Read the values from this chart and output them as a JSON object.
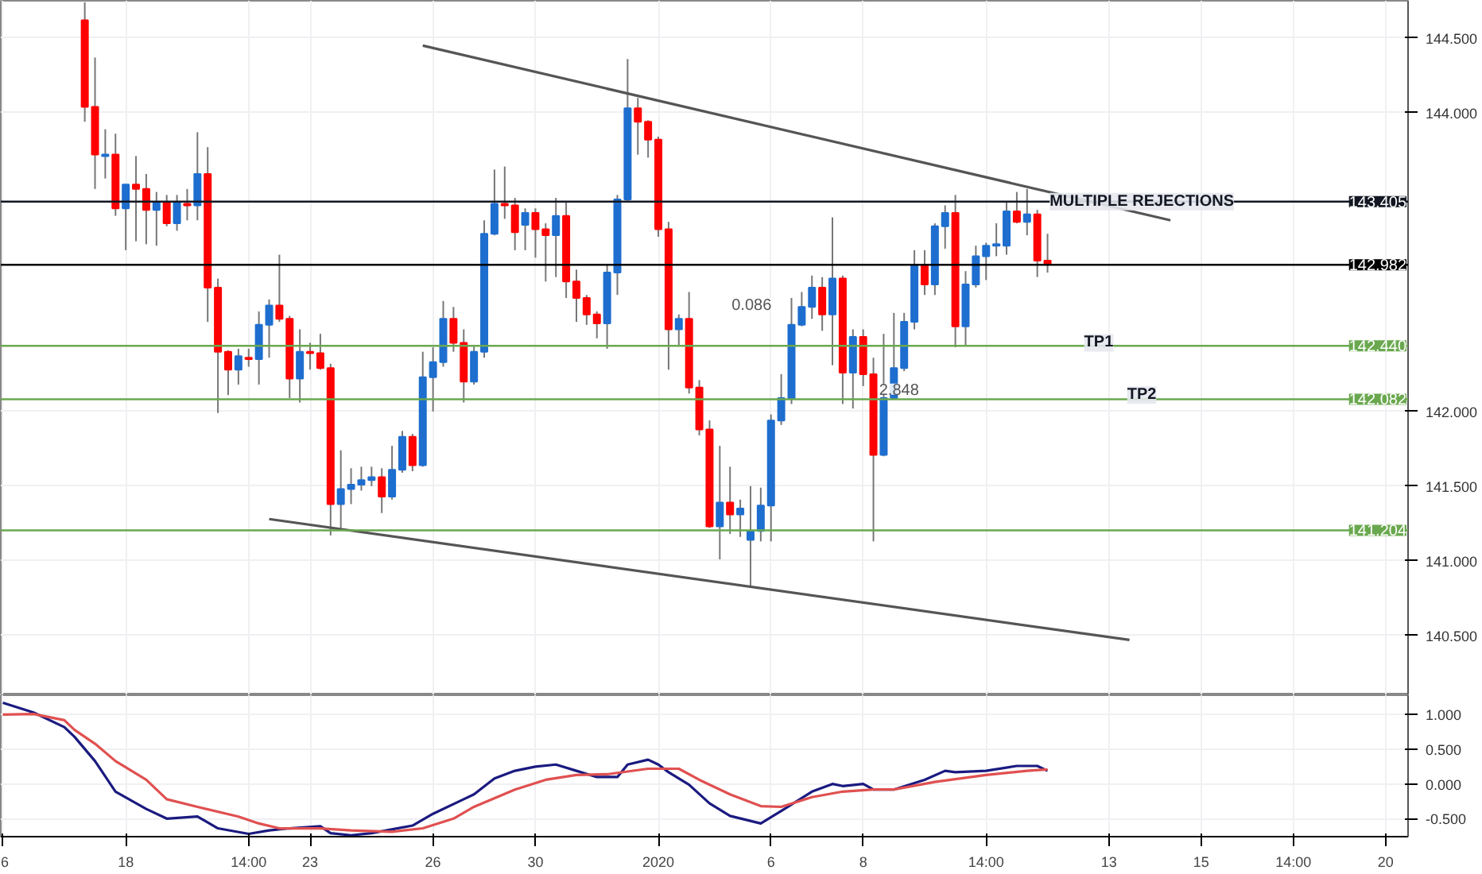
{
  "chart_data": [
    {
      "type": "candlestick",
      "categories": [
        "6",
        null,
        null,
        null,
        null,
        null,
        null,
        null,
        null,
        null,
        null,
        null,
        "18",
        null,
        null,
        null,
        null,
        null,
        null,
        null,
        null,
        null,
        null,
        null,
        "14:00",
        null,
        null,
        null,
        null,
        null,
        "23",
        null,
        null,
        null,
        null,
        null,
        null,
        null,
        null,
        null,
        null,
        null,
        "26",
        null,
        null,
        null,
        null,
        null,
        null,
        null,
        null,
        null,
        "30",
        null,
        null,
        null,
        null,
        null,
        null,
        null,
        null,
        null,
        null,
        null,
        "2020",
        null,
        null,
        null,
        null,
        null,
        null,
        null,
        null,
        null,
        null,
        "6",
        null,
        null,
        null,
        null,
        null,
        null,
        null,
        null,
        "8",
        null,
        null,
        null,
        null,
        null,
        null,
        null,
        null,
        null,
        null,
        null,
        "14:00",
        null,
        null,
        null,
        null,
        null,
        null,
        null,
        null,
        null,
        null,
        null,
        "13",
        null,
        null,
        null,
        null,
        null,
        null,
        null,
        null,
        "15",
        null,
        null,
        null,
        null,
        null,
        null,
        null,
        null,
        "14:00",
        null,
        null,
        null,
        null,
        null,
        null,
        null,
        null,
        "20",
        null,
        null
      ],
      "ohlc": [
        null,
        null,
        null,
        null,
        null,
        null,
        null,
        null,
        [
          144.62,
          144.74,
          143.94,
          144.04
        ],
        [
          144.04,
          144.37,
          143.49,
          143.72
        ],
        [
          143.71,
          143.89,
          143.56,
          143.72
        ],
        [
          143.72,
          143.86,
          143.31,
          143.36
        ],
        [
          143.36,
          143.52,
          143.08,
          143.52
        ],
        [
          143.52,
          143.71,
          143.14,
          143.49
        ],
        [
          143.49,
          143.59,
          143.12,
          143.35
        ],
        [
          143.35,
          143.47,
          143.11,
          143.4
        ],
        [
          143.4,
          143.45,
          143.24,
          143.26
        ],
        [
          143.26,
          143.45,
          143.21,
          143.4
        ],
        [
          143.39,
          143.49,
          143.28,
          143.38
        ],
        [
          143.38,
          143.87,
          143.28,
          143.59
        ],
        [
          143.59,
          143.77,
          142.6,
          142.83
        ],
        [
          142.83,
          142.89,
          141.99,
          142.4
        ],
        [
          142.4,
          142.41,
          142.11,
          142.28
        ],
        [
          142.28,
          142.42,
          142.18,
          142.37
        ],
        [
          142.36,
          142.42,
          142.3,
          142.35
        ],
        [
          142.35,
          142.67,
          142.18,
          142.58
        ],
        [
          142.58,
          142.75,
          142.36,
          142.71
        ],
        [
          142.71,
          143.05,
          142.6,
          142.62
        ],
        [
          142.62,
          142.64,
          142.09,
          142.22
        ],
        [
          142.22,
          142.55,
          142.06,
          142.4
        ],
        [
          142.4,
          142.46,
          142.28,
          142.39
        ],
        [
          142.39,
          142.52,
          142.28,
          142.29
        ],
        [
          142.29,
          142.32,
          141.17,
          141.38
        ],
        [
          141.38,
          141.74,
          141.22,
          141.48
        ],
        [
          141.48,
          141.62,
          141.38,
          141.51
        ],
        [
          141.51,
          141.63,
          141.47,
          141.54
        ],
        [
          141.54,
          141.63,
          141.5,
          141.56
        ],
        [
          141.56,
          141.62,
          141.32,
          141.43
        ],
        [
          141.43,
          141.77,
          141.41,
          141.61
        ],
        [
          141.61,
          141.87,
          141.59,
          141.83
        ],
        [
          141.83,
          141.85,
          141.6,
          141.64
        ],
        [
          141.64,
          142.4,
          141.63,
          142.23
        ],
        [
          142.23,
          142.43,
          142.0,
          142.33
        ],
        [
          142.33,
          142.74,
          142.3,
          142.62
        ],
        [
          142.62,
          142.7,
          142.4,
          142.46
        ],
        [
          142.46,
          142.55,
          142.06,
          142.2
        ],
        [
          142.2,
          142.44,
          142.18,
          142.4
        ],
        [
          142.4,
          143.28,
          142.36,
          143.19
        ],
        [
          143.19,
          143.62,
          143.18,
          143.39
        ],
        [
          143.39,
          143.64,
          143.29,
          143.38
        ],
        [
          143.38,
          143.43,
          143.08,
          143.2
        ],
        [
          143.25,
          143.36,
          143.08,
          143.33
        ],
        [
          143.33,
          143.36,
          143.03,
          143.22
        ],
        [
          143.22,
          143.26,
          142.87,
          143.18
        ],
        [
          143.18,
          143.43,
          142.9,
          143.31
        ],
        [
          143.31,
          143.4,
          142.76,
          142.87
        ],
        [
          142.87,
          142.95,
          142.6,
          142.76
        ],
        [
          142.76,
          142.78,
          142.58,
          142.65
        ],
        [
          142.65,
          142.67,
          142.49,
          142.59
        ],
        [
          142.59,
          142.98,
          142.42,
          142.93
        ],
        [
          142.93,
          143.45,
          142.78,
          143.42
        ],
        [
          143.42,
          144.36,
          143.41,
          144.03
        ],
        [
          144.03,
          144.1,
          143.72,
          143.94
        ],
        [
          143.94,
          143.95,
          143.7,
          143.82
        ],
        [
          143.82,
          143.84,
          143.17,
          143.22
        ],
        [
          143.22,
          143.27,
          142.28,
          142.55
        ],
        [
          142.55,
          142.65,
          142.44,
          142.62
        ],
        [
          142.62,
          142.8,
          142.12,
          142.16
        ],
        [
          142.16,
          142.21,
          141.84,
          141.88
        ],
        [
          141.88,
          141.94,
          141.22,
          141.23
        ],
        [
          141.23,
          141.77,
          141.01,
          141.39
        ],
        [
          141.39,
          141.63,
          141.18,
          141.31
        ],
        [
          141.31,
          141.41,
          141.16,
          141.35
        ],
        [
          141.14,
          141.5,
          140.83,
          141.2
        ],
        [
          141.2,
          141.49,
          141.13,
          141.37
        ],
        [
          141.37,
          141.98,
          141.13,
          141.94
        ],
        [
          141.94,
          142.25,
          141.91,
          142.09
        ],
        [
          142.09,
          142.76,
          142.05,
          142.58
        ],
        [
          142.58,
          142.8,
          142.57,
          142.7
        ],
        [
          142.7,
          142.91,
          142.62,
          142.83
        ],
        [
          142.83,
          142.9,
          142.54,
          142.65
        ],
        [
          142.65,
          143.3,
          142.31,
          142.89
        ],
        [
          142.89,
          142.91,
          142.05,
          142.26
        ],
        [
          142.26,
          142.55,
          142.02,
          142.5
        ],
        [
          142.5,
          142.55,
          142.17,
          142.25
        ],
        [
          142.25,
          142.36,
          141.13,
          141.71
        ],
        [
          141.71,
          142.52,
          141.7,
          142.09
        ],
        [
          142.09,
          142.66,
          142.08,
          142.29
        ],
        [
          142.29,
          142.66,
          142.27,
          142.6
        ],
        [
          142.6,
          143.08,
          142.55,
          142.98
        ],
        [
          142.98,
          143.08,
          142.78,
          142.85
        ],
        [
          142.85,
          143.26,
          142.78,
          143.24
        ],
        [
          143.24,
          143.38,
          143.09,
          143.33
        ],
        [
          143.33,
          143.45,
          142.43,
          142.57
        ],
        [
          142.57,
          142.94,
          142.44,
          142.85
        ],
        [
          142.85,
          143.11,
          142.83,
          143.04
        ],
        [
          143.04,
          143.13,
          142.88,
          143.11
        ],
        [
          143.11,
          143.26,
          143.04,
          143.12
        ],
        [
          143.11,
          143.4,
          143.05,
          143.34
        ],
        [
          143.34,
          143.47,
          143.26,
          143.27
        ],
        [
          143.27,
          143.49,
          143.18,
          143.32
        ],
        [
          143.32,
          143.35,
          142.9,
          143.01
        ],
        [
          143.01,
          143.19,
          142.93,
          142.99
        ],
        null,
        null,
        null,
        null,
        null,
        null,
        null,
        null,
        null,
        null,
        null,
        null,
        null,
        null,
        null,
        null,
        null,
        null,
        null,
        null,
        null,
        null,
        null,
        null,
        null,
        null,
        null,
        null,
        null,
        null,
        null,
        null,
        null,
        null,
        null
      ],
      "colors": [
        null,
        null,
        null,
        null,
        null,
        null,
        null,
        null,
        "#ff0000",
        "#ff0000",
        "#1e6ecf",
        "#ff0000",
        "#1e6ecf",
        "#ff0000",
        "#ff0000",
        "#1e6ecf",
        "#ff0000",
        "#1e6ecf",
        "#ff0000",
        "#1e6ecf",
        "#ff0000",
        "#ff0000",
        "#ff0000",
        "#1e6ecf",
        "#ff0000",
        "#1e6ecf",
        "#1e6ecf",
        "#ff0000",
        "#ff0000",
        "#1e6ecf",
        "#ff0000",
        "#ff0000",
        "#ff0000",
        "#1e6ecf",
        "#1e6ecf",
        "#1e6ecf",
        "#1e6ecf",
        "#ff0000",
        "#1e6ecf",
        "#1e6ecf",
        "#ff0000",
        "#1e6ecf",
        "#1e6ecf",
        "#1e6ecf",
        "#ff0000",
        "#ff0000",
        "#1e6ecf",
        "#1e6ecf",
        "#1e6ecf",
        "#ff0000",
        "#ff0000",
        "#1e6ecf",
        "#ff0000",
        "#ff0000",
        "#1e6ecf",
        "#ff0000",
        "#ff0000",
        "#ff0000",
        "#ff0000",
        "#1e6ecf",
        "#1e6ecf",
        "#1e6ecf",
        "#ff0000",
        "#ff0000",
        "#ff0000",
        "#ff0000",
        "#1e6ecf",
        "#ff0000",
        "#ff0000",
        "#ff0000",
        "#1e6ecf",
        "#ff0000",
        "#1e6ecf",
        "#1e6ecf",
        "#1e6ecf",
        "#1e6ecf",
        "#1e6ecf",
        "#1e6ecf",
        "#1e6ecf",
        "#1e6ecf",
        "#ff0000",
        "#1e6ecf",
        "#ff0000",
        "#1e6ecf",
        "#ff0000",
        "#ff0000",
        "#1e6ecf",
        "#1e6ecf",
        "#1e6ecf",
        "#1e6ecf",
        "#ff0000",
        "#1e6ecf",
        "#1e6ecf",
        "#ff0000",
        "#1e6ecf",
        "#1e6ecf",
        "#1e6ecf",
        "#1e6ecf",
        "#1e6ecf",
        "#ff0000",
        "#1e6ecf",
        "#ff0000",
        "#ff0000",
        null,
        null,
        null,
        null,
        null,
        null,
        null,
        null,
        null,
        null,
        null,
        null,
        null,
        null,
        null,
        null,
        null,
        null,
        null,
        null,
        null,
        null,
        null,
        null,
        null,
        null,
        null,
        null,
        null,
        null,
        null,
        null,
        null,
        null,
        null
      ],
      "series": [
        {
          "type": "line",
          "color": "#555555",
          "values": [
            null,
            null,
            null,
            null,
            null,
            null,
            null,
            null,
            null,
            null,
            null,
            null,
            null,
            null,
            null,
            null,
            null,
            null,
            null,
            null,
            null,
            null,
            null,
            null,
            null,
            null,
            null,
            null,
            null,
            null,
            null,
            null,
            null,
            null,
            null,
            null,
            null,
            null,
            null,
            null,
            null,
            144.45,
            null,
            null,
            null,
            null,
            null,
            null,
            null,
            null,
            null,
            null,
            null,
            null,
            null,
            null,
            null,
            null,
            null,
            null,
            null,
            null,
            null,
            null,
            null,
            null,
            null,
            null,
            null,
            null,
            null,
            null,
            null,
            null,
            null,
            null,
            null,
            null,
            null,
            null,
            null,
            null,
            null,
            null,
            null,
            null,
            null,
            null,
            null,
            null,
            null,
            null,
            null,
            null,
            null,
            null,
            null,
            null,
            null,
            null,
            null,
            null,
            null,
            null,
            null,
            null,
            null,
            null,
            null,
            null,
            null,
            null,
            null,
            null,
            143.28,
            null,
            null,
            null,
            null,
            null,
            null,
            null,
            null,
            null,
            null,
            null,
            null,
            null,
            null,
            null,
            null,
            null,
            null,
            null,
            null,
            null,
            null,
            null
          ]
        },
        {
          "type": "line",
          "color": "#555555",
          "values": [
            null,
            null,
            null,
            null,
            null,
            null,
            null,
            null,
            null,
            null,
            null,
            null,
            null,
            null,
            null,
            null,
            null,
            null,
            null,
            null,
            null,
            null,
            null,
            null,
            null,
            null,
            141.28,
            null,
            null,
            null,
            null,
            null,
            null,
            null,
            null,
            null,
            null,
            null,
            null,
            null,
            null,
            null,
            null,
            null,
            null,
            null,
            null,
            null,
            null,
            null,
            null,
            null,
            null,
            null,
            null,
            null,
            null,
            null,
            null,
            null,
            null,
            null,
            null,
            null,
            null,
            null,
            null,
            null,
            null,
            null,
            null,
            null,
            null,
            null,
            null,
            null,
            null,
            null,
            null,
            null,
            null,
            null,
            null,
            null,
            null,
            null,
            null,
            null,
            null,
            null,
            null,
            null,
            null,
            null,
            null,
            null,
            null,
            null,
            null,
            null,
            null,
            null,
            null,
            null,
            null,
            null,
            null,
            null,
            null,
            null,
            140.47,
            null,
            null,
            null,
            null,
            null,
            null,
            null,
            null,
            null,
            null,
            null,
            null,
            null,
            null,
            null,
            null,
            null,
            null,
            null,
            null,
            null,
            null,
            null,
            null,
            null,
            null,
            null
          ]
        }
      ],
      "ylim": [
        140.1,
        144.75
      ],
      "yticks": [
        {
          "value": 140.5,
          "label": "140.500"
        },
        {
          "value": 141,
          "label": "141.000"
        },
        {
          "value": 141.5,
          "label": "141.500"
        },
        {
          "value": 142,
          "label": "142.000"
        },
        {
          "value": 144,
          "label": "144.000"
        },
        {
          "value": 144.5,
          "label": "144.500"
        }
      ],
      "tick_labels": "y",
      "grid": true,
      "ref_lines": [
        {
          "axis": "y",
          "value": 143.405,
          "label": "143.405",
          "color": "#131722"
        },
        {
          "axis": "y",
          "value": 142.982,
          "label": "142.982",
          "color": "#000000"
        },
        {
          "axis": "y",
          "value": 142.44,
          "label": "142.440",
          "color": "#6aa84f"
        },
        {
          "axis": "y",
          "value": 142.082,
          "label": "142.082",
          "color": "#6aa84f"
        },
        {
          "axis": "y",
          "value": 141.204,
          "label": "141.204",
          "color": "#6aa84f"
        }
      ],
      "annotations": [
        {
          "text": "MULTIPLE REJECTIONS",
          "y": 143.405
        },
        {
          "text": "TP1",
          "y": 142.46
        },
        {
          "text": "TP2",
          "y": 142.11
        },
        "0.086",
        "2.848"
      ]
    },
    {
      "type": "line",
      "categories": [
        "6",
        null,
        null,
        null,
        null,
        null,
        null,
        null,
        null,
        null,
        null,
        null,
        "18",
        null,
        null,
        null,
        null,
        null,
        null,
        null,
        null,
        null,
        null,
        null,
        "14:00",
        null,
        null,
        null,
        null,
        null,
        "23",
        null,
        null,
        null,
        null,
        null,
        null,
        null,
        null,
        null,
        null,
        null,
        "26",
        null,
        null,
        null,
        null,
        null,
        null,
        null,
        null,
        null,
        "30",
        null,
        null,
        null,
        null,
        null,
        null,
        null,
        null,
        null,
        null,
        null,
        "2020",
        null,
        null,
        null,
        null,
        null,
        null,
        null,
        null,
        null,
        null,
        "6",
        null,
        null,
        null,
        null,
        null,
        null,
        null,
        null,
        "8",
        null,
        null,
        null,
        null,
        null,
        null,
        null,
        null,
        null,
        null,
        null,
        "14:00",
        null,
        null,
        null,
        null,
        null,
        null,
        null,
        null,
        null,
        null,
        null,
        "13",
        null,
        null,
        null,
        null,
        null,
        null,
        null,
        null,
        "15",
        null,
        null,
        null,
        null,
        null,
        null,
        null,
        null,
        "14:00",
        null,
        null,
        null,
        null,
        null,
        null,
        null,
        null,
        "20",
        null,
        null
      ],
      "ylim": [
        -0.76,
        1.28
      ],
      "yticks": [
        {
          "value": 1,
          "label": "1.000"
        },
        {
          "value": 0.5,
          "label": "0.500"
        },
        {
          "value": 0,
          "label": "0.000"
        },
        {
          "value": -0.5,
          "label": "-0.500"
        }
      ],
      "grid": true,
      "series": [
        {
          "color": "#1a1a80",
          "values": [
            1.17,
            null,
            null,
            1.03,
            null,
            null,
            0.82,
            0.68,
            null,
            0.33,
            null,
            -0.11,
            null,
            null,
            -0.36,
            null,
            -0.5,
            null,
            null,
            -0.47,
            null,
            -0.64,
            null,
            null,
            -0.72,
            null,
            -0.67,
            null,
            -0.64,
            null,
            null,
            -0.61,
            -0.71,
            null,
            -0.74,
            null,
            -0.71,
            null,
            null,
            null,
            -0.6,
            null,
            -0.43,
            null,
            null,
            -0.22,
            -0.15,
            null,
            0.08,
            null,
            0.19,
            null,
            0.25,
            null,
            0.28,
            null,
            0.19,
            null,
            0.1,
            null,
            0.1,
            0.28,
            null,
            0.35,
            0.28,
            0.17,
            null,
            -0.01,
            null,
            -0.28,
            null,
            -0.46,
            null,
            null,
            -0.57,
            null,
            -0.39,
            null,
            null,
            -0.11,
            null,
            0.0,
            -0.03,
            null,
            0.0,
            -0.08,
            null,
            -0.08,
            null,
            null,
            0.06,
            null,
            0.19,
            0.17,
            null,
            null,
            0.19,
            null,
            null,
            0.26,
            null,
            0.26,
            0.19,
            null,
            null,
            null,
            null,
            null,
            null,
            null,
            null,
            null,
            null,
            null,
            null,
            null,
            null,
            null,
            null,
            null,
            null,
            null,
            null,
            null,
            null,
            null,
            null,
            null,
            null,
            null,
            null,
            null,
            null,
            null,
            null,
            null,
            null,
            null
          ]
        },
        {
          "color": "#e05050",
          "values": [
            1.0,
            null,
            null,
            1.01,
            null,
            null,
            0.92,
            0.78,
            null,
            0.58,
            null,
            0.33,
            null,
            null,
            0.06,
            null,
            -0.22,
            null,
            null,
            -0.33,
            null,
            null,
            null,
            -0.47,
            null,
            -0.57,
            null,
            -0.64,
            null,
            null,
            null,
            -0.64,
            null,
            null,
            -0.67,
            null,
            null,
            null,
            -0.69,
            null,
            null,
            -0.64,
            null,
            null,
            -0.5,
            null,
            -0.33,
            null,
            null,
            null,
            -0.08,
            null,
            null,
            0.06,
            null,
            null,
            0.13,
            null,
            null,
            0.14,
            null,
            null,
            null,
            0.22,
            null,
            null,
            0.22,
            null,
            0.06,
            null,
            null,
            -0.15,
            null,
            null,
            -0.32,
            null,
            -0.33,
            null,
            null,
            -0.19,
            null,
            null,
            -0.11,
            null,
            null,
            -0.08,
            null,
            -0.08,
            null,
            null,
            null,
            0.03,
            null,
            null,
            null,
            null,
            0.13,
            null,
            null,
            null,
            0.19,
            null,
            0.21,
            null,
            null,
            null,
            null,
            null,
            null,
            null,
            null,
            null,
            null,
            null,
            null,
            null,
            null,
            null,
            null,
            null,
            null,
            null,
            null,
            null,
            null,
            null,
            null,
            null,
            null,
            null,
            null,
            null,
            null,
            null,
            null,
            null,
            null,
            null
          ]
        }
      ]
    }
  ]
}
